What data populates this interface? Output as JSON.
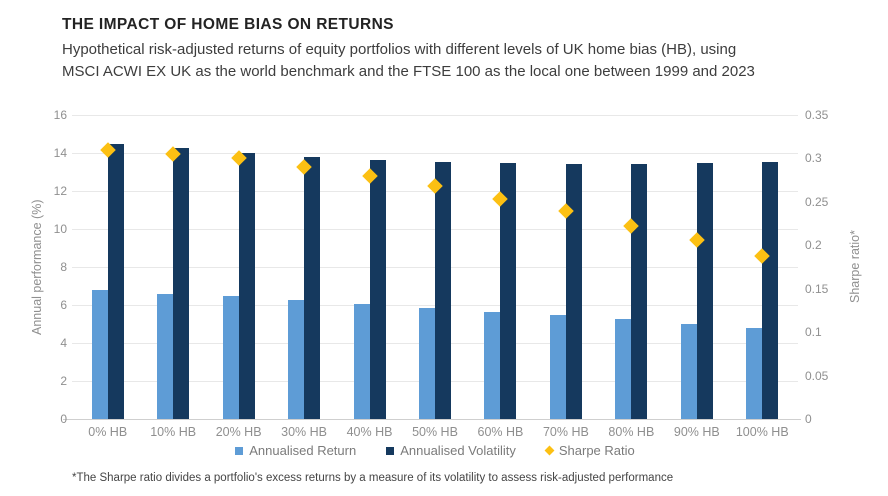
{
  "header": {
    "title": "THE IMPACT OF HOME BIAS ON RETURNS",
    "subtitle_line1": "Hypothetical risk-adjusted returns of equity portfolios with different levels of UK home bias (HB), using",
    "subtitle_line2": "MSCI ACWI EX UK as the world benchmark and the FTSE 100 as the local one between 1999 and 2023"
  },
  "chart_data": {
    "type": "bar",
    "categories": [
      "0% HB",
      "10% HB",
      "20% HB",
      "30% HB",
      "40% HB",
      "50% HB",
      "60% HB",
      "70% HB",
      "80% HB",
      "90% HB",
      "100% HB"
    ],
    "series": [
      {
        "name": "Annualised Return",
        "type": "bar",
        "axis": "left",
        "color": "#5e9cd6",
        "values": [
          6.8,
          6.6,
          6.45,
          6.25,
          6.05,
          5.85,
          5.65,
          5.45,
          5.25,
          5.0,
          4.8
        ]
      },
      {
        "name": "Annualised Volatility",
        "type": "bar",
        "axis": "left",
        "color": "#15395e",
        "values": [
          14.5,
          14.25,
          14.0,
          13.8,
          13.65,
          13.55,
          13.45,
          13.4,
          13.4,
          13.5,
          13.55
        ]
      },
      {
        "name": "Sharpe Ratio",
        "type": "scatter",
        "marker": "diamond",
        "axis": "right",
        "color": "#fcc013",
        "values": [
          0.31,
          0.305,
          0.3,
          0.29,
          0.28,
          0.268,
          0.253,
          0.239,
          0.222,
          0.206,
          0.188
        ]
      }
    ],
    "left_axis": {
      "label": "Annual performance (%)",
      "min": 0,
      "max": 16,
      "ticks": [
        0,
        2,
        4,
        6,
        8,
        10,
        12,
        14,
        16
      ],
      "tick_labels": [
        "0",
        "2",
        "4",
        "6",
        "8",
        "10",
        "12",
        "14",
        "16"
      ]
    },
    "right_axis": {
      "label": "Sharpe ratio*",
      "min": 0,
      "max": 0.35,
      "ticks": [
        0,
        0.05,
        0.1,
        0.15,
        0.2,
        0.25,
        0.3,
        0.35
      ],
      "tick_labels": [
        "0",
        "0.05",
        "0.1",
        "0.15",
        "0.2",
        "0.25",
        "0.3",
        "0.35"
      ]
    },
    "grid": true,
    "legend_position": "bottom"
  },
  "legend": {
    "items": [
      {
        "label": "Annualised Return",
        "marker": "square",
        "color": "#5e9cd6"
      },
      {
        "label": "Annualised Volatility",
        "marker": "square",
        "color": "#15395e"
      },
      {
        "label": "Sharpe Ratio",
        "marker": "diamond",
        "color": "#fcc013"
      }
    ]
  },
  "footnote": "*The Sharpe ratio divides a portfolio's excess returns by a measure of its volatility to assess risk-adjusted performance",
  "colors": {
    "return_bar": "#5e9cd6",
    "volatility_bar": "#15395e",
    "sharpe_marker": "#fcc013",
    "gridline": "#e8e8e8",
    "axis_text": "#8f8f8f",
    "title_text": "#232323"
  }
}
